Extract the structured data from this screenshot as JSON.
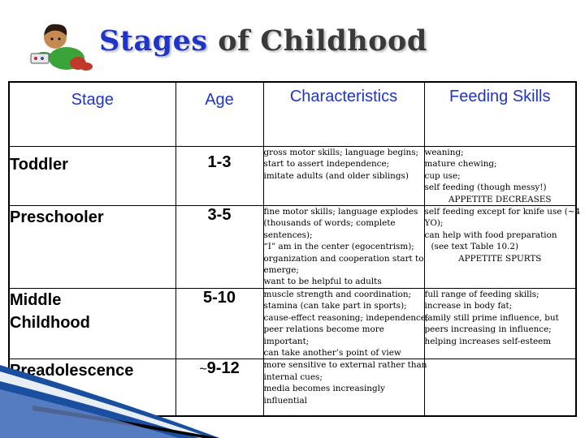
{
  "title": {
    "accent": "Stages",
    "rest": " of Childhood"
  },
  "columns": [
    "Stage",
    "Age",
    "Characteristics",
    "Feeding Skills"
  ],
  "rows": [
    {
      "stage": "Toddler",
      "age": "1-3",
      "characteristics": [
        "gross motor skills; language begins;",
        "start to assert independence;",
        "imitate adults (and older siblings)"
      ],
      "feeding": [
        "weaning;",
        "mature chewing;",
        "cup use;",
        "self feeding (though messy!)",
        "APPETITE DECREASES"
      ]
    },
    {
      "stage": "Preschooler",
      "age": "3-5",
      "characteristics": [
        "fine motor skills; language explodes",
        "(thousands of words; complete",
        "sentences);",
        "“I” am in the center (egocentrism);",
        "organization and cooperation start to",
        "emerge;",
        "want to be helpful to adults"
      ],
      "feeding": [
        "self feeding except for knife use (~4",
        "YO);",
        "can help with food preparation",
        "(see text Table 10.2)",
        "APPETITE SPURTS"
      ]
    },
    {
      "stage_lines": [
        "Middle",
        "Childhood"
      ],
      "age": "5-10",
      "characteristics": [
        "muscle strength and coordination;",
        "stamina (can take part in sports);",
        "cause-effect reasoning; independence;",
        "peer relations become more",
        "important;",
        "can take another’s point of view"
      ],
      "feeding": [
        "full range of feeding skills;",
        "increase in body fat;",
        "family still prime influence, but",
        "peers increasing in influence;",
        "helping increases self-esteem"
      ]
    },
    {
      "stage": "Preadolescence",
      "age_prefix": "~",
      "age": "9-12",
      "characteristics": [
        "more sensitive to external rather than",
        "internal cues;",
        "media becomes increasingly",
        "influential"
      ],
      "feeding": []
    }
  ],
  "colors": {
    "accent": "#1f35c8",
    "title_rest": "#3a3a3a",
    "swoosh": "#1a4fa0"
  },
  "icons": {
    "clipart": "child-reading-clipart"
  }
}
